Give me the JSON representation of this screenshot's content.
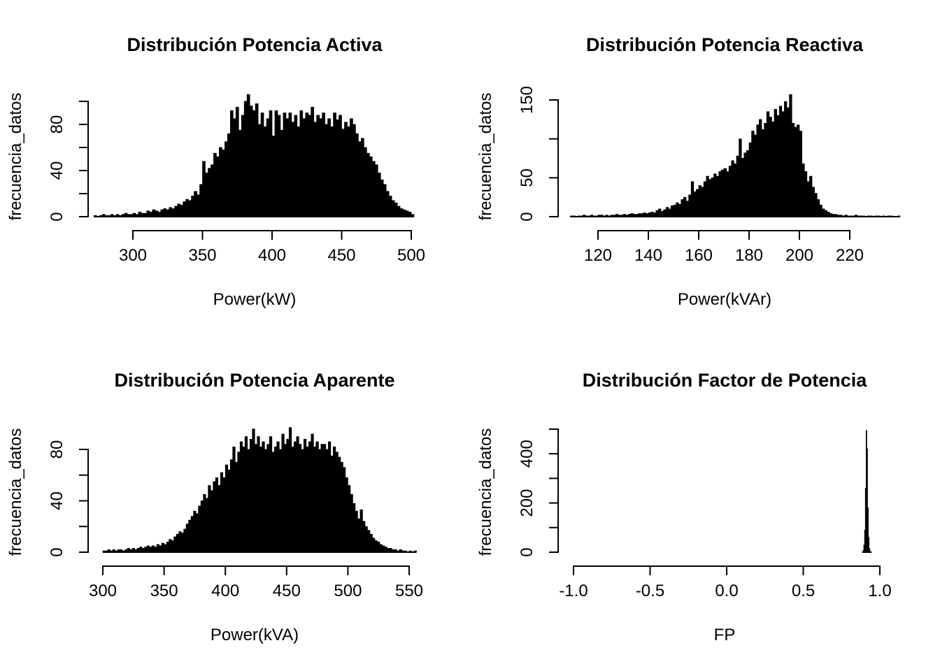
{
  "page": {
    "background": "#ffffff",
    "ink": "#000000"
  },
  "chart_data": [
    {
      "type": "bar",
      "subtype": "histogram",
      "title": "Distribución Potencia Activa",
      "xlabel": "Power(kW)",
      "ylabel": "frecuencia_datos",
      "bar_color": "#000000",
      "grid": false,
      "legend": "none",
      "x_ticks": [
        300,
        350,
        400,
        450,
        500
      ],
      "x_tick_labels": [
        "300",
        "350",
        "400",
        "450",
        "500"
      ],
      "y_ticks": [
        0,
        20,
        40,
        60,
        80,
        100
      ],
      "y_tick_labels": [
        "0",
        "",
        "40",
        "",
        "80",
        ""
      ],
      "xlim": [
        272,
        502
      ],
      "ylim": [
        0,
        106
      ],
      "bins": {
        "start": 272,
        "width": 2,
        "counts": [
          1,
          0,
          1,
          2,
          1,
          1,
          2,
          1,
          2,
          1,
          2,
          3,
          2,
          2,
          3,
          2,
          4,
          3,
          3,
          5,
          4,
          6,
          5,
          4,
          6,
          7,
          6,
          8,
          7,
          9,
          11,
          10,
          13,
          15,
          14,
          18,
          22,
          19,
          28,
          48,
          38,
          42,
          45,
          55,
          52,
          60,
          58,
          65,
          72,
          92,
          85,
          95,
          75,
          88,
          100,
          106,
          96,
          92,
          98,
          80,
          90,
          78,
          85,
          92,
          70,
          92,
          88,
          75,
          90,
          85,
          90,
          82,
          88,
          78,
          92,
          85,
          90,
          88,
          95,
          82,
          88,
          85,
          90,
          80,
          85,
          78,
          90,
          84,
          88,
          76,
          82,
          78,
          85,
          80,
          72,
          65,
          68,
          60,
          55,
          52,
          48,
          45,
          38,
          32,
          28,
          22,
          18,
          14,
          12,
          9,
          7,
          6,
          5,
          4,
          2
        ]
      }
    },
    {
      "type": "bar",
      "subtype": "histogram",
      "title": "Distribución Potencia Reactiva",
      "xlabel": "Power(kVAr)",
      "ylabel": "frecuencia_datos",
      "bar_color": "#000000",
      "grid": false,
      "legend": "none",
      "x_ticks": [
        120,
        140,
        160,
        180,
        200,
        220
      ],
      "x_tick_labels": [
        "120",
        "140",
        "160",
        "180",
        "200",
        "220"
      ],
      "y_ticks": [
        0,
        50,
        100,
        150
      ],
      "y_tick_labels": [
        "0",
        "50",
        "",
        "150"
      ],
      "xlim": [
        109,
        240
      ],
      "ylim": [
        0,
        157
      ],
      "bins": {
        "start": 109,
        "width": 1,
        "counts": [
          1,
          1,
          0,
          1,
          1,
          2,
          1,
          1,
          2,
          1,
          1,
          2,
          2,
          1,
          2,
          1,
          2,
          2,
          3,
          2,
          2,
          3,
          2,
          3,
          4,
          3,
          3,
          4,
          4,
          5,
          4,
          5,
          6,
          5,
          8,
          10,
          7,
          9,
          12,
          10,
          14,
          15,
          18,
          16,
          22,
          25,
          20,
          28,
          45,
          32,
          35,
          40,
          38,
          45,
          52,
          48,
          50,
          55,
          52,
          58,
          60,
          62,
          58,
          65,
          72,
          68,
          78,
          100,
          75,
          82,
          85,
          95,
          110,
          105,
          118,
          125,
          112,
          120,
          135,
          128,
          122,
          138,
          130,
          142,
          135,
          148,
          140,
          157,
          120,
          115,
          118,
          110,
          68,
          58,
          45,
          52,
          38,
          30,
          22,
          15,
          10,
          8,
          6,
          4,
          3,
          3,
          2,
          2,
          1,
          2,
          1,
          1,
          1,
          2,
          1,
          1,
          1,
          0,
          1,
          1,
          0,
          1,
          1,
          0,
          1,
          0,
          1,
          1,
          0,
          0,
          1
        ]
      }
    },
    {
      "type": "bar",
      "subtype": "histogram",
      "title": "Distribución Potencia Aparente",
      "xlabel": "Power(kVA)",
      "ylabel": "frecuencia_datos",
      "bar_color": "#000000",
      "grid": false,
      "legend": "none",
      "x_ticks": [
        300,
        350,
        400,
        450,
        500,
        550
      ],
      "x_tick_labels": [
        "300",
        "350",
        "400",
        "450",
        "500",
        "550"
      ],
      "y_ticks": [
        0,
        20,
        40,
        60,
        80
      ],
      "y_tick_labels": [
        "0",
        "",
        "40",
        "",
        "80"
      ],
      "xlim": [
        300,
        556
      ],
      "ylim": [
        0,
        97
      ],
      "bins": {
        "start": 300,
        "width": 2,
        "counts": [
          1,
          1,
          2,
          1,
          2,
          1,
          2,
          2,
          1,
          2,
          3,
          2,
          3,
          2,
          3,
          4,
          3,
          4,
          5,
          4,
          5,
          4,
          6,
          5,
          7,
          6,
          8,
          10,
          9,
          12,
          14,
          16,
          15,
          18,
          22,
          25,
          28,
          32,
          30,
          36,
          40,
          45,
          42,
          52,
          48,
          55,
          58,
          52,
          62,
          58,
          68,
          64,
          72,
          82,
          70,
          78,
          86,
          82,
          90,
          80,
          88,
          96,
          84,
          90,
          82,
          86,
          80,
          84,
          90,
          78,
          82,
          86,
          80,
          92,
          84,
          88,
          97,
          82,
          86,
          90,
          84,
          80,
          88,
          82,
          86,
          92,
          82,
          86,
          80,
          84,
          84,
          80,
          86,
          75,
          82,
          78,
          74,
          70,
          66,
          58,
          52,
          45,
          38,
          32,
          26,
          33,
          24,
          20,
          17,
          14,
          11,
          9,
          8,
          6,
          5,
          4,
          3,
          3,
          2,
          2,
          1,
          2,
          1,
          1,
          0,
          1,
          0,
          1
        ]
      }
    },
    {
      "type": "bar",
      "subtype": "histogram",
      "title": "Distribución Factor de Potencia",
      "xlabel": "FP",
      "ylabel": "frecuencia_datos",
      "bar_color": "#000000",
      "grid": false,
      "legend": "none",
      "x_ticks": [
        -1.0,
        -0.5,
        0.0,
        0.5,
        1.0
      ],
      "x_tick_labels": [
        "-1.0",
        "-0.5",
        "0.0",
        "0.5",
        "1.0"
      ],
      "y_ticks": [
        0,
        100,
        200,
        300,
        400,
        500
      ],
      "y_tick_labels": [
        "0",
        "",
        "200",
        "",
        "400",
        ""
      ],
      "xlim": [
        -1.0,
        1.0
      ],
      "ylim": [
        0,
        500
      ],
      "bins": {
        "start": 0.885,
        "width": 0.005,
        "counts": [
          2,
          8,
          30,
          90,
          260,
          495,
          420,
          180,
          60,
          15,
          4,
          1
        ]
      }
    }
  ]
}
